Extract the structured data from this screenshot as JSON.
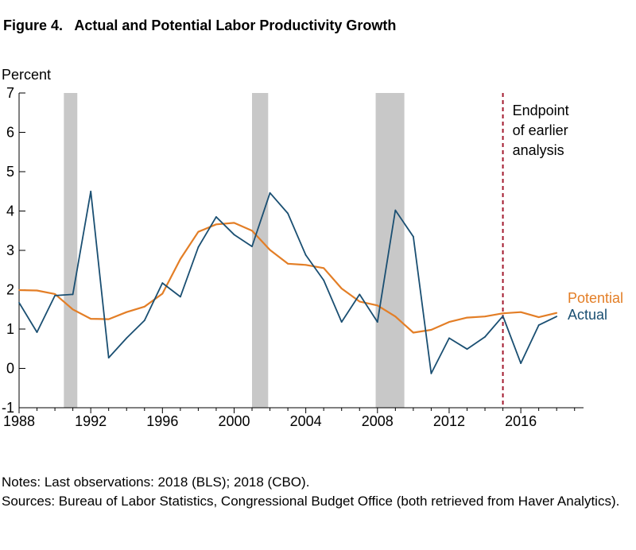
{
  "figure": {
    "title": "Figure 4.   Actual and Potential Labor Productivity Growth",
    "notes": "Notes: Last observations: 2018 (BLS); 2018 (CBO).",
    "sources": "Sources: Bureau of Labor Statistics, Congressional Budget Office (both retrieved from Haver Analytics)."
  },
  "chart_data": {
    "type": "line",
    "title": "Actual and Potential Labor Productivity Growth",
    "ylabel": "Percent",
    "xlabel": "",
    "ylim": [
      -1,
      7
    ],
    "xlim": [
      1988,
      2019.5
    ],
    "yticks": [
      -1,
      0,
      1,
      2,
      3,
      4,
      5,
      6,
      7
    ],
    "xticks": [
      1988,
      1992,
      1996,
      2000,
      2004,
      2008,
      2012,
      2016
    ],
    "x": [
      1988,
      1989,
      1990,
      1991,
      1992,
      1993,
      1994,
      1995,
      1996,
      1997,
      1998,
      1999,
      2000,
      2001,
      2002,
      2003,
      2004,
      2005,
      2006,
      2007,
      2008,
      2009,
      2010,
      2011,
      2012,
      2013,
      2014,
      2015,
      2016,
      2017,
      2018
    ],
    "series": [
      {
        "name": "Actual",
        "color": "#1a4f72",
        "values": [
          1.67,
          0.92,
          1.85,
          1.88,
          4.5,
          0.27,
          0.77,
          1.22,
          2.17,
          1.82,
          3.08,
          3.85,
          3.4,
          3.1,
          4.46,
          3.94,
          2.88,
          2.24,
          1.18,
          1.88,
          1.18,
          4.02,
          3.35,
          -0.13,
          0.77,
          0.49,
          0.8,
          1.33,
          0.13,
          1.1,
          1.32
        ]
      },
      {
        "name": "Potential",
        "color": "#e37e26",
        "values": [
          1.99,
          1.98,
          1.89,
          1.5,
          1.26,
          1.25,
          1.43,
          1.57,
          1.9,
          2.78,
          3.47,
          3.66,
          3.7,
          3.5,
          3.01,
          2.66,
          2.63,
          2.55,
          2.03,
          1.7,
          1.6,
          1.32,
          0.91,
          0.98,
          1.18,
          1.29,
          1.32,
          1.4,
          1.43,
          1.3,
          1.41
        ]
      }
    ],
    "recessions": [
      [
        1990.5,
        1991.25
      ],
      [
        2001.0,
        2001.9
      ],
      [
        2007.9,
        2009.5
      ]
    ],
    "vline": {
      "x": 2015,
      "label": [
        "Endpoint",
        "of earlier",
        "analysis"
      ],
      "color": "#a3192e"
    },
    "recession_color": "#c8c8c8",
    "grid": false
  }
}
